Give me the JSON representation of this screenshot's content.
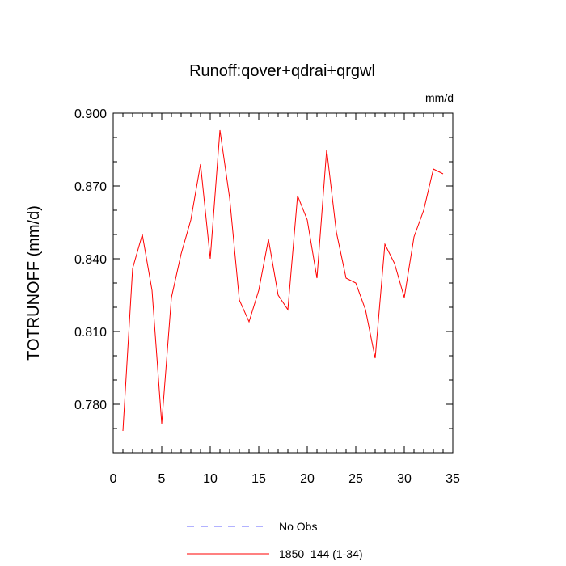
{
  "chart_data": {
    "type": "line",
    "title": "Runoff:qover+qdrai+qrgwl",
    "units_label": "mm/d",
    "xlabel": "",
    "ylabel": "TOTRUNOFF  (mm/d)",
    "xlim": [
      0,
      35
    ],
    "ylim": [
      0.76,
      0.9
    ],
    "x_ticks": [
      0,
      5,
      10,
      15,
      20,
      25,
      30,
      35
    ],
    "y_ticks": [
      0.78,
      0.81,
      0.84,
      0.87,
      0.9
    ],
    "y_tick_labels": [
      "0.780",
      "0.810",
      "0.840",
      "0.870",
      "0.900"
    ],
    "grid": false,
    "legend_position": "bottom",
    "series": [
      {
        "name": "1850_144 (1-34)",
        "color": "#ff0000",
        "style": "solid",
        "x": [
          1,
          2,
          3,
          4,
          5,
          6,
          7,
          8,
          9,
          10,
          11,
          12,
          13,
          14,
          15,
          16,
          17,
          18,
          19,
          20,
          21,
          22,
          23,
          24,
          25,
          26,
          27,
          28,
          29,
          30,
          31,
          32,
          33,
          34
        ],
        "values": [
          0.769,
          0.836,
          0.85,
          0.827,
          0.772,
          0.824,
          0.842,
          0.856,
          0.879,
          0.84,
          0.893,
          0.865,
          0.823,
          0.814,
          0.827,
          0.848,
          0.825,
          0.819,
          0.866,
          0.856,
          0.832,
          0.885,
          0.851,
          0.832,
          0.83,
          0.819,
          0.799,
          0.846,
          0.838,
          0.824,
          0.849,
          0.86,
          0.877,
          0.875
        ]
      }
    ],
    "legend": [
      {
        "label": "No Obs",
        "color": "#6666ff",
        "style": "dashed"
      },
      {
        "label": "1850_144 (1-34)",
        "color": "#ff0000",
        "style": "solid"
      }
    ]
  }
}
